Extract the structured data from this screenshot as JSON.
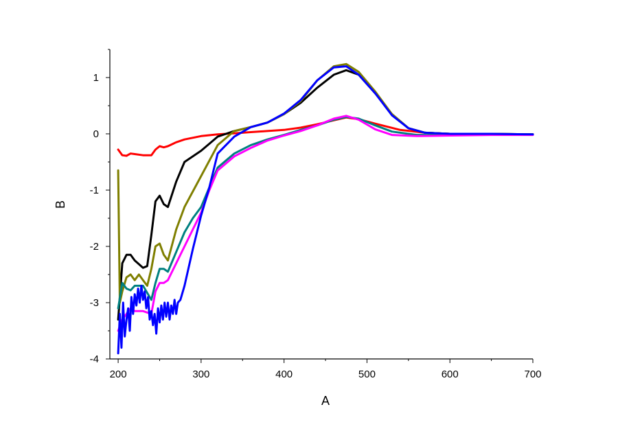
{
  "chart_data": {
    "type": "line",
    "title": "",
    "xlabel": "A",
    "ylabel": "B",
    "xlim": [
      190,
      700
    ],
    "ylim": [
      -4,
      1.5
    ],
    "x_ticks": [
      200,
      300,
      400,
      500,
      600,
      700
    ],
    "y_ticks": [
      -4,
      -3,
      -2,
      -1,
      0,
      1
    ],
    "grid": false,
    "legend": "none",
    "series": [
      {
        "color": "#ff0000",
        "x": [
          200,
          205,
          210,
          215,
          220,
          230,
          240,
          245,
          250,
          255,
          260,
          270,
          280,
          300,
          320,
          340,
          360,
          380,
          400,
          420,
          440,
          460,
          475,
          490,
          510,
          540,
          570,
          600,
          650,
          700
        ],
        "y": [
          -0.28,
          -0.38,
          -0.39,
          -0.35,
          -0.36,
          -0.38,
          -0.38,
          -0.28,
          -0.22,
          -0.24,
          -0.22,
          -0.15,
          -0.1,
          -0.04,
          -0.01,
          0.01,
          0.03,
          0.05,
          0.07,
          0.11,
          0.17,
          0.24,
          0.29,
          0.26,
          0.18,
          0.07,
          0.02,
          0.0,
          -0.01,
          -0.01
        ]
      },
      {
        "color": "#000000",
        "x": [
          200,
          205,
          210,
          215,
          220,
          230,
          235,
          240,
          245,
          250,
          255,
          260,
          270,
          280,
          300,
          320,
          340,
          360,
          380,
          400,
          420,
          440,
          460,
          475,
          490,
          510,
          530,
          550,
          570,
          600,
          650,
          700
        ],
        "y": [
          -3.3,
          -2.3,
          -2.15,
          -2.15,
          -2.25,
          -2.38,
          -2.35,
          -1.8,
          -1.2,
          -1.1,
          -1.25,
          -1.3,
          -0.85,
          -0.5,
          -0.3,
          -0.05,
          0.05,
          0.12,
          0.2,
          0.35,
          0.55,
          0.82,
          1.05,
          1.13,
          1.05,
          0.72,
          0.35,
          0.1,
          0.02,
          0.0,
          0.0,
          -0.01
        ]
      },
      {
        "color": "#7f7f00",
        "x": [
          200,
          202,
          205,
          210,
          215,
          220,
          225,
          230,
          235,
          240,
          245,
          250,
          255,
          260,
          270,
          280,
          300,
          320,
          340,
          360,
          380,
          400,
          420,
          440,
          460,
          475,
          490,
          510,
          530,
          550,
          570,
          600,
          650,
          700
        ],
        "y": [
          -0.65,
          -3.0,
          -2.8,
          -2.55,
          -2.5,
          -2.6,
          -2.5,
          -2.6,
          -2.7,
          -2.4,
          -2.0,
          -1.95,
          -2.15,
          -2.25,
          -1.7,
          -1.3,
          -0.75,
          -0.2,
          0.05,
          0.12,
          0.2,
          0.35,
          0.58,
          0.95,
          1.2,
          1.24,
          1.1,
          0.75,
          0.35,
          0.1,
          0.02,
          0.0,
          0.0,
          -0.01
        ]
      },
      {
        "color": "#008080",
        "x": [
          200,
          205,
          210,
          215,
          220,
          230,
          240,
          245,
          250,
          255,
          260,
          270,
          280,
          290,
          300,
          310,
          320,
          340,
          360,
          380,
          400,
          420,
          440,
          460,
          475,
          490,
          510,
          530,
          560,
          600,
          650,
          700
        ],
        "y": [
          -3.1,
          -2.65,
          -2.75,
          -2.78,
          -2.7,
          -2.7,
          -2.95,
          -2.65,
          -2.4,
          -2.4,
          -2.45,
          -2.1,
          -1.75,
          -1.5,
          -1.3,
          -0.95,
          -0.6,
          -0.35,
          -0.2,
          -0.1,
          -0.02,
          0.07,
          0.15,
          0.25,
          0.3,
          0.27,
          0.15,
          0.04,
          -0.02,
          -0.02,
          -0.01,
          -0.01
        ]
      },
      {
        "color": "#ff00ff",
        "x": [
          200,
          205,
          210,
          215,
          220,
          230,
          240,
          245,
          250,
          255,
          260,
          270,
          280,
          290,
          300,
          310,
          320,
          340,
          360,
          380,
          400,
          420,
          440,
          460,
          475,
          490,
          510,
          530,
          560,
          600,
          650,
          700
        ],
        "y": [
          -3.5,
          -3.3,
          -3.2,
          -3.1,
          -3.15,
          -3.15,
          -3.2,
          -2.8,
          -2.65,
          -2.65,
          -2.6,
          -2.3,
          -2.0,
          -1.7,
          -1.4,
          -1.0,
          -0.65,
          -0.4,
          -0.25,
          -0.12,
          -0.03,
          0.05,
          0.15,
          0.27,
          0.32,
          0.25,
          0.08,
          -0.02,
          -0.04,
          -0.03,
          -0.02,
          -0.02
        ]
      },
      {
        "color": "#0000ff",
        "x": [
          200,
          202,
          204,
          206,
          208,
          210,
          212,
          214,
          216,
          218,
          220,
          222,
          224,
          226,
          228,
          230,
          232,
          234,
          236,
          238,
          240,
          242,
          244,
          246,
          248,
          250,
          252,
          254,
          256,
          258,
          260,
          262,
          264,
          266,
          268,
          270,
          272,
          275,
          280,
          290,
          300,
          310,
          320,
          340,
          360,
          380,
          400,
          420,
          440,
          460,
          475,
          490,
          510,
          530,
          550,
          570,
          600,
          650,
          700
        ],
        "y": [
          -3.9,
          -3.2,
          -3.8,
          -3.0,
          -3.6,
          -3.3,
          -3.1,
          -3.5,
          -2.9,
          -3.2,
          -2.85,
          -3.05,
          -2.75,
          -3.0,
          -2.7,
          -2.95,
          -2.8,
          -3.1,
          -2.9,
          -3.3,
          -3.15,
          -3.4,
          -3.2,
          -3.55,
          -3.1,
          -3.35,
          -3.05,
          -3.3,
          -3.0,
          -3.25,
          -3.0,
          -3.3,
          -3.05,
          -3.2,
          -2.95,
          -3.2,
          -3.0,
          -2.95,
          -2.7,
          -2.05,
          -1.45,
          -0.95,
          -0.35,
          -0.05,
          0.12,
          0.2,
          0.36,
          0.6,
          0.95,
          1.18,
          1.2,
          1.05,
          0.72,
          0.33,
          0.1,
          0.02,
          0.0,
          0.0,
          -0.01
        ]
      }
    ]
  }
}
